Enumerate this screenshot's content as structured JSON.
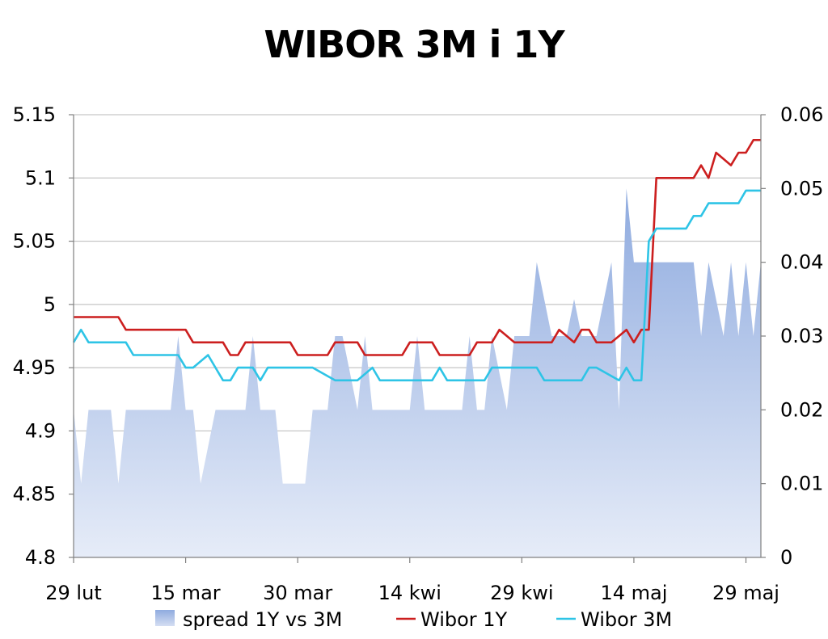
{
  "chart_data": {
    "type": "line",
    "title": "WIBOR 3M i 1Y",
    "x_ticks": [
      "29 lut",
      "15 mar",
      "30 mar",
      "14 kwi",
      "29 kwi",
      "14 maj",
      "29 maj"
    ],
    "x_range": [
      "29 lut",
      "31 maj"
    ],
    "left_axis": {
      "ylim": [
        4.8,
        5.15
      ],
      "ticks": [
        "4.8",
        "4.85",
        "4.9",
        "4.95",
        "5",
        "5.05",
        "5.1",
        "5.15"
      ]
    },
    "right_axis": {
      "ylim": [
        0,
        0.06
      ],
      "ticks": [
        "0",
        "0.01",
        "0.02",
        "0.03",
        "0.04",
        "0.05",
        "0.06"
      ]
    },
    "grid": "horizontal",
    "legend_position": "bottom",
    "series": [
      {
        "name": "spread 1Y vs 3M",
        "type": "area",
        "axis": "right",
        "color": "#9bb4e0",
        "x": [
          0,
          1,
          2,
          5,
          6,
          7,
          8,
          9,
          10,
          13,
          14,
          15,
          16,
          17,
          19,
          20,
          21,
          22,
          23,
          24,
          25,
          26,
          27,
          28,
          29,
          30,
          31,
          32,
          33,
          34,
          35,
          36,
          37,
          38,
          39,
          40,
          41,
          42,
          43,
          44,
          45,
          46,
          47,
          48,
          49,
          50,
          51,
          52,
          53,
          54,
          55,
          56,
          57,
          58,
          59,
          60,
          61,
          62,
          63,
          64,
          65,
          66,
          67,
          68,
          69,
          70,
          71,
          72,
          73,
          74,
          75,
          76,
          77,
          78,
          79,
          80,
          81,
          82,
          83,
          84,
          85,
          86,
          87,
          88,
          89,
          90,
          91,
          92
        ],
        "values": [
          0.02,
          0.01,
          0.02,
          0.02,
          0.01,
          0.02,
          0.02,
          0.02,
          0.02,
          0.02,
          0.03,
          0.02,
          0.02,
          0.01,
          0.02,
          0.02,
          0.02,
          0.02,
          0.02,
          0.03,
          0.02,
          0.02,
          0.02,
          0.01,
          0.01,
          0.01,
          0.01,
          0.02,
          0.02,
          0.02,
          0.03,
          0.03,
          0.025,
          0.02,
          0.03,
          0.02,
          0.02,
          0.02,
          0.02,
          0.02,
          0.02,
          0.03,
          0.02,
          0.02,
          0.02,
          0.02,
          0.02,
          0.02,
          0.03,
          0.02,
          0.02,
          0.03,
          0.025,
          0.02,
          0.03,
          0.03,
          0.03,
          0.04,
          0.035,
          0.03,
          0.03,
          0.03,
          0.035,
          0.03,
          0.03,
          0.03,
          0.035,
          0.04,
          0.02,
          0.05,
          0.04,
          0.04,
          0.04,
          0.04,
          0.04,
          0.04,
          0.04,
          0.04,
          0.04,
          0.03,
          0.04,
          0.035,
          0.03,
          0.04,
          0.03,
          0.04,
          0.03,
          0.04
        ]
      },
      {
        "name": "Wibor 1Y",
        "type": "line",
        "axis": "left",
        "color": "#cc1f1f",
        "x": [
          0,
          6,
          7,
          15,
          16,
          20,
          21,
          22,
          23,
          29,
          30,
          31,
          32,
          34,
          35,
          38,
          39,
          40,
          41,
          42,
          43,
          44,
          45,
          48,
          49,
          50,
          51,
          52,
          53,
          54,
          56,
          57,
          58,
          59,
          60,
          61,
          62,
          63,
          64,
          65,
          66,
          67,
          68,
          69,
          70,
          71,
          72,
          73,
          74,
          75,
          76,
          77,
          78,
          79,
          80,
          81,
          82,
          83,
          84,
          85,
          86,
          87,
          88,
          89,
          90,
          91,
          92
        ],
        "values": [
          4.99,
          4.99,
          4.98,
          4.98,
          4.97,
          4.97,
          4.96,
          4.96,
          4.97,
          4.97,
          4.96,
          4.96,
          4.96,
          4.96,
          4.97,
          4.97,
          4.96,
          4.96,
          4.96,
          4.96,
          4.96,
          4.96,
          4.97,
          4.97,
          4.96,
          4.96,
          4.96,
          4.96,
          4.96,
          4.97,
          4.97,
          4.98,
          4.975,
          4.97,
          4.97,
          4.97,
          4.97,
          4.97,
          4.97,
          4.98,
          4.975,
          4.97,
          4.98,
          4.98,
          4.97,
          4.97,
          4.97,
          4.975,
          4.98,
          4.97,
          4.98,
          4.98,
          5.1,
          5.1,
          5.1,
          5.1,
          5.1,
          5.1,
          5.11,
          5.1,
          5.12,
          5.115,
          5.11,
          5.12,
          5.12,
          5.13,
          5.13
        ]
      },
      {
        "name": "Wibor 3M",
        "type": "line",
        "axis": "left",
        "color": "#2ec4e6",
        "x": [
          0,
          1,
          2,
          7,
          8,
          14,
          15,
          16,
          18,
          19,
          20,
          21,
          22,
          23,
          24,
          25,
          26,
          27,
          28,
          29,
          30,
          31,
          32,
          35,
          36,
          37,
          38,
          40,
          41,
          42,
          43,
          48,
          49,
          50,
          51,
          55,
          56,
          57,
          58,
          62,
          63,
          67,
          68,
          69,
          70,
          73,
          74,
          75,
          76,
          77,
          78,
          79,
          80,
          81,
          82,
          83,
          84,
          85,
          86,
          87,
          88,
          89,
          90,
          91,
          92
        ],
        "values": [
          4.97,
          4.98,
          4.97,
          4.97,
          4.96,
          4.96,
          4.95,
          4.95,
          4.96,
          4.95,
          4.94,
          4.94,
          4.95,
          4.95,
          4.95,
          4.94,
          4.95,
          4.95,
          4.95,
          4.95,
          4.95,
          4.95,
          4.95,
          4.94,
          4.94,
          4.94,
          4.94,
          4.95,
          4.94,
          4.94,
          4.94,
          4.94,
          4.95,
          4.94,
          4.94,
          4.94,
          4.95,
          4.95,
          4.95,
          4.95,
          4.94,
          4.94,
          4.94,
          4.95,
          4.95,
          4.94,
          4.95,
          4.94,
          4.94,
          5.05,
          5.06,
          5.06,
          5.06,
          5.06,
          5.06,
          5.07,
          5.07,
          5.08,
          5.08,
          5.08,
          5.08,
          5.08,
          5.09,
          5.09,
          5.09
        ]
      }
    ]
  },
  "legend": {
    "items": [
      {
        "label": "spread 1Y vs 3M",
        "color": "#9bb4e0"
      },
      {
        "label": "Wibor 1Y",
        "color": "#cc1f1f"
      },
      {
        "label": "Wibor 3M",
        "color": "#2ec4e6"
      }
    ]
  }
}
